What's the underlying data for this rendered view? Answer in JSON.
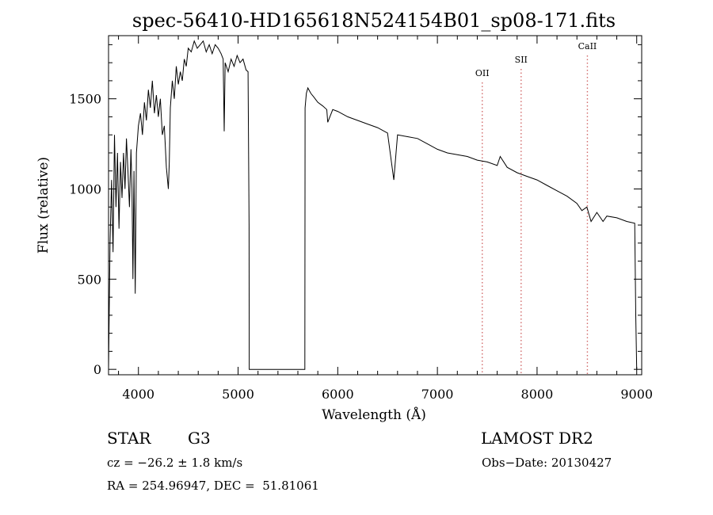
{
  "chart_data": {
    "type": "line",
    "title": "spec-56410-HD165618N524154B01_sp08-171.fits",
    "xlabel": "Wavelength (Å)",
    "ylabel": "Flux (relative)",
    "xlim": [
      3700,
      9050
    ],
    "ylim": [
      -30,
      1850
    ],
    "xticks": [
      4000,
      5000,
      6000,
      7000,
      8000,
      9000
    ],
    "yticks": [
      0,
      500,
      1000,
      1500
    ],
    "grid": false,
    "series": [
      {
        "x": [
          3700,
          3715,
          3730,
          3745,
          3760,
          3775,
          3790,
          3805,
          3820,
          3835,
          3850,
          3865,
          3880,
          3895,
          3910,
          3925,
          3935,
          3945,
          3955,
          3968,
          3980,
          4000,
          4020,
          4040,
          4060,
          4080,
          4100,
          4120,
          4140,
          4160,
          4180,
          4200,
          4220,
          4240,
          4260,
          4280,
          4300,
          4310,
          4320,
          4340,
          4360,
          4380,
          4400,
          4420,
          4440,
          4460,
          4480,
          4500,
          4530,
          4560,
          4590,
          4620,
          4650,
          4680,
          4710,
          4740,
          4770,
          4800,
          4830,
          4850,
          4861,
          4870,
          4900,
          4930,
          4960,
          4990,
          5020,
          5050,
          5080,
          5100,
          5110,
          5112,
          5670,
          5672,
          5685,
          5700,
          5730,
          5760,
          5800,
          5850,
          5890,
          5900,
          5950,
          6000,
          6100,
          6200,
          6300,
          6400,
          6500,
          6563,
          6600,
          6700,
          6800,
          6900,
          7000,
          7100,
          7200,
          7300,
          7400,
          7500,
          7600,
          7630,
          7700,
          7800,
          7900,
          8000,
          8100,
          8200,
          8300,
          8400,
          8450,
          8500,
          8542,
          8600,
          8662,
          8700,
          8800,
          8900,
          8980,
          8990,
          9000
        ],
        "y": [
          0,
          700,
          1050,
          650,
          1300,
          900,
          1200,
          780,
          1150,
          950,
          1200,
          1000,
          1280,
          1100,
          900,
          1220,
          1000,
          500,
          1100,
          420,
          1200,
          1350,
          1420,
          1300,
          1480,
          1380,
          1550,
          1450,
          1600,
          1420,
          1520,
          1400,
          1500,
          1300,
          1350,
          1120,
          1000,
          1150,
          1450,
          1600,
          1500,
          1680,
          1580,
          1650,
          1600,
          1720,
          1680,
          1780,
          1760,
          1820,
          1780,
          1800,
          1820,
          1760,
          1800,
          1750,
          1800,
          1780,
          1750,
          1720,
          1320,
          1700,
          1650,
          1720,
          1680,
          1740,
          1700,
          1720,
          1660,
          1650,
          800,
          0,
          0,
          1450,
          1530,
          1560,
          1530,
          1510,
          1480,
          1460,
          1440,
          1370,
          1440,
          1430,
          1400,
          1380,
          1360,
          1340,
          1310,
          1050,
          1300,
          1290,
          1280,
          1250,
          1220,
          1200,
          1190,
          1180,
          1160,
          1150,
          1130,
          1180,
          1120,
          1090,
          1070,
          1050,
          1020,
          990,
          960,
          920,
          880,
          900,
          820,
          870,
          820,
          850,
          840,
          820,
          810,
          300,
          0
        ]
      }
    ],
    "markers": [
      {
        "label": "OII",
        "x": 7450
      },
      {
        "label": "SII",
        "x": 7840
      },
      {
        "label": "CaII",
        "x": 8505
      }
    ],
    "marker_color": "#d26a6a"
  },
  "info": {
    "object_type": "STAR",
    "subclass": "G3",
    "survey": "LAMOST DR2",
    "cz": "cz = −26.2 ± 1.8 km/s",
    "obs_date": "Obs−Date: 20130427",
    "coords": "RA = 254.96947, DEC =  51.81061"
  }
}
